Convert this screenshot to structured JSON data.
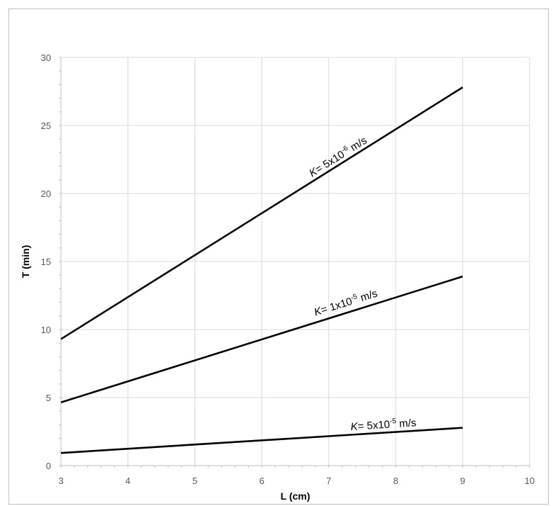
{
  "chart_data": {
    "type": "line",
    "title": "",
    "xlabel": "L (cm)",
    "ylabel": "T (min)",
    "xlim": [
      3,
      10
    ],
    "ylim": [
      0,
      30
    ],
    "xticks": [
      3,
      4,
      5,
      6,
      7,
      8,
      9,
      10
    ],
    "yticks": [
      0,
      5,
      10,
      15,
      20,
      25,
      30
    ],
    "grid": true,
    "legend": "none",
    "line_color": "#000000",
    "grid_color": "#d9d9d9",
    "series": [
      {
        "x": [
          3,
          9
        ],
        "y": [
          9.3,
          27.8
        ],
        "annotation": {
          "prefix": "K",
          "mid": "= 5x10",
          "exp": "-6",
          "unit": " m/s",
          "anchor_x": 6.75,
          "anchor_y": 21.2
        }
      },
      {
        "x": [
          3,
          9
        ],
        "y": [
          4.65,
          13.9
        ],
        "annotation": {
          "prefix": "K",
          "mid": "= 1x10",
          "exp": "-5",
          "unit": " m/s",
          "anchor_x": 6.8,
          "anchor_y": 11.0
        }
      },
      {
        "x": [
          3,
          9
        ],
        "y": [
          0.93,
          2.78
        ],
        "annotation": {
          "prefix": "K",
          "mid": "= 5x10",
          "exp": "-5",
          "unit": " m/s",
          "anchor_x": 7.33,
          "anchor_y": 2.6
        }
      }
    ]
  }
}
